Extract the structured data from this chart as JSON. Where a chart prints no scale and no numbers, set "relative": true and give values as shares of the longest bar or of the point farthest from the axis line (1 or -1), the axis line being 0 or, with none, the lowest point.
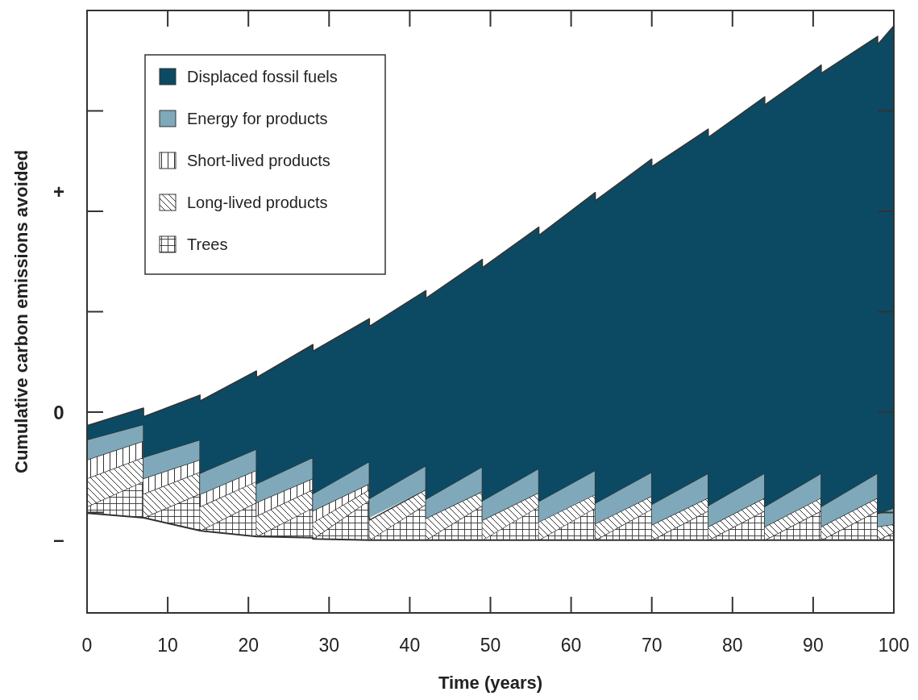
{
  "chart_data": {
    "type": "area",
    "relative": true,
    "xlabel": "Time (years)",
    "ylabel": "Cumulative carbon emissions avoided",
    "legend": "top left",
    "x": [
      0,
      7,
      7,
      14,
      14,
      21,
      21,
      28,
      28,
      35,
      35,
      42,
      42,
      49,
      49,
      56,
      56,
      63,
      63,
      70,
      70,
      77,
      77,
      84,
      84,
      91,
      91,
      98,
      98,
      100
    ],
    "xlim": [
      0,
      100
    ],
    "xticks": [
      0,
      10,
      20,
      30,
      40,
      50,
      60,
      70,
      80,
      90,
      100
    ],
    "annotations": [
      "+",
      "0",
      "–"
    ],
    "series": [
      {
        "type": "line",
        "color": "#333333",
        "values": [
          0.17,
          0.162,
          0.162,
          0.14,
          0.14,
          0.13,
          0.13,
          0.128,
          0.126,
          0.124,
          0.124,
          0.124,
          0.124,
          0.124,
          0.124,
          0.124,
          0.124,
          0.124,
          0.124,
          0.124,
          0.124,
          0.124,
          0.124,
          0.124,
          0.124,
          0.124,
          0.124,
          0.124,
          0.124,
          0.124
        ]
      },
      {
        "name": "Trees",
        "color": "#ffffff",
        "values": [
          0.181,
          0.224,
          0.162,
          0.203,
          0.14,
          0.188,
          0.13,
          0.179,
          0.126,
          0.192,
          0.124,
          0.185,
          0.124,
          0.183,
          0.124,
          0.181,
          0.124,
          0.179,
          0.124,
          0.177,
          0.124,
          0.174,
          0.124,
          0.174,
          0.124,
          0.174,
          0.124,
          0.174,
          0.124,
          0.137
        ]
      },
      {
        "name": "Long-lived products",
        "color": "#ffffff",
        "values": [
          0.229,
          0.265,
          0.203,
          0.24,
          0.181,
          0.224,
          0.165,
          0.21,
          0.154,
          0.21,
          0.158,
          0.21,
          0.161,
          0.207,
          0.158,
          0.205,
          0.155,
          0.202,
          0.152,
          0.199,
          0.15,
          0.196,
          0.147,
          0.196,
          0.147,
          0.196,
          0.147,
          0.196,
          0.147,
          0.151
        ]
      },
      {
        "name": "Short-lived products",
        "color": "#ffffff",
        "values": [
          0.261,
          0.293,
          0.229,
          0.261,
          0.202,
          0.243,
          0.188,
          0.229,
          0.174,
          0.22,
          0.162,
          null,
          null,
          null,
          null,
          null,
          null,
          null,
          null,
          null,
          null,
          null,
          null,
          null,
          null,
          null,
          null,
          null,
          null,
          null
        ]
      },
      {
        "name": "Energy for products",
        "color": "#7fa9ba",
        "values": [
          0.295,
          0.321,
          0.265,
          0.295,
          0.238,
          0.279,
          0.22,
          0.265,
          0.203,
          0.258,
          0.195,
          0.251,
          0.194,
          0.249,
          0.191,
          0.246,
          0.19,
          0.243,
          0.187,
          0.24,
          0.185,
          0.238,
          0.183,
          0.238,
          0.181,
          0.238,
          0.181,
          0.238,
          0.169,
          0.179
        ]
      },
      {
        "name": "Displaced fossil fuels",
        "color": "#0c4a63",
        "values": [
          0.319,
          0.349,
          0.334,
          0.371,
          0.361,
          0.412,
          0.401,
          0.457,
          0.446,
          0.501,
          0.488,
          0.549,
          0.536,
          0.602,
          0.588,
          0.657,
          0.643,
          0.716,
          0.702,
          0.773,
          0.76,
          0.824,
          0.81,
          0.879,
          0.865,
          0.933,
          0.919,
          0.982,
          0.968,
          1
        ]
      }
    ]
  }
}
